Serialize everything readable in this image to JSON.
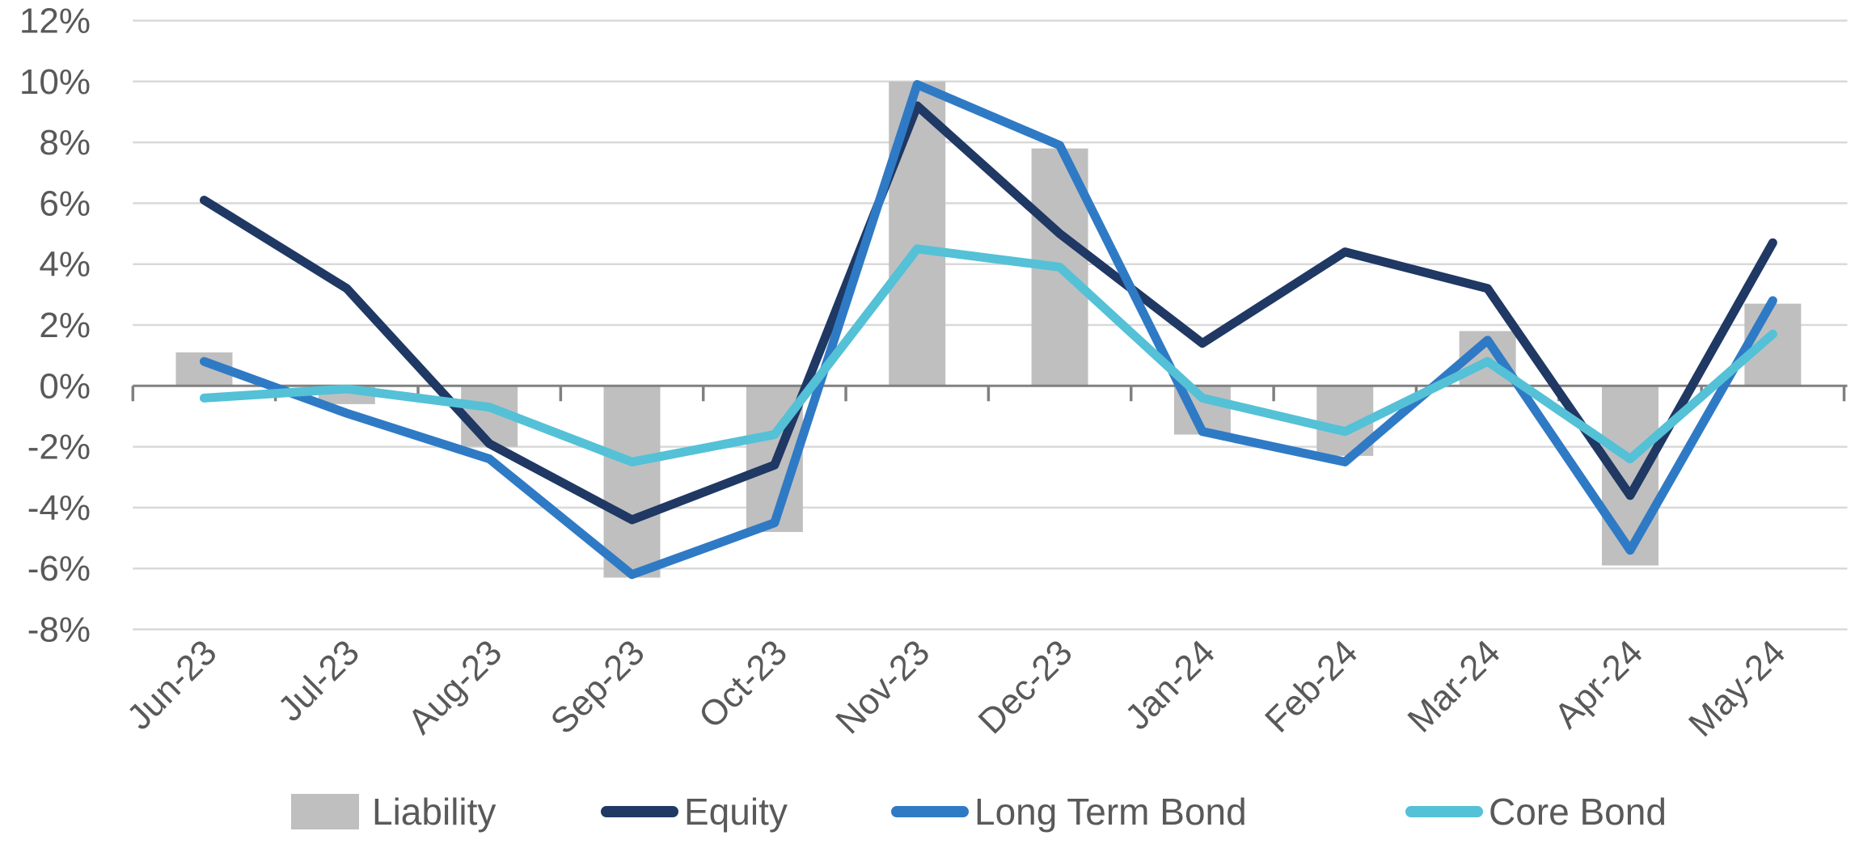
{
  "chart_data": {
    "type": "combo",
    "title": "",
    "xlabel": "",
    "ylabel": "",
    "categories": [
      "Jun-23",
      "Jul-23",
      "Aug-23",
      "Sep-23",
      "Oct-23",
      "Nov-23",
      "Dec-23",
      "Jan-24",
      "Feb-24",
      "Mar-24",
      "Apr-24",
      "May-24"
    ],
    "series": [
      {
        "name": "Liability",
        "type": "bar",
        "color": "#BFBFBF",
        "values": [
          1.1,
          -0.6,
          -2.0,
          -6.3,
          -4.8,
          10.0,
          7.8,
          -1.6,
          -2.3,
          1.8,
          -5.9,
          2.7
        ]
      },
      {
        "name": "Equity",
        "type": "line",
        "color": "#1F3864",
        "values": [
          6.1,
          3.2,
          -1.9,
          -4.4,
          -2.6,
          9.2,
          5.0,
          1.4,
          4.4,
          3.2,
          -3.6,
          4.7
        ]
      },
      {
        "name": "Long Term Bond",
        "type": "line",
        "color": "#2F7AC5",
        "values": [
          0.8,
          -0.9,
          -2.4,
          -6.2,
          -4.5,
          9.9,
          7.9,
          -1.5,
          -2.5,
          1.5,
          -5.4,
          2.8
        ]
      },
      {
        "name": "Core Bond",
        "type": "line",
        "color": "#54C1D7",
        "values": [
          -0.4,
          -0.1,
          -0.7,
          -2.5,
          -1.6,
          4.5,
          3.9,
          -0.4,
          -1.5,
          0.8,
          -2.4,
          1.7
        ]
      }
    ],
    "ylim": [
      -8,
      12
    ],
    "ytick_step": 2,
    "y_tick_labels": [
      "12%",
      "10%",
      "8%",
      "6%",
      "4%",
      "2%",
      "0%",
      "-2%",
      "-4%",
      "-6%",
      "-8%"
    ],
    "grid": true,
    "legend_position": "bottom"
  },
  "legend": {
    "items": [
      {
        "label": "Liability"
      },
      {
        "label": "Equity"
      },
      {
        "label": "Long Term Bond"
      },
      {
        "label": "Core Bond"
      }
    ]
  },
  "colors": {
    "gridline": "#D9D9D9",
    "axis_line": "#808080",
    "tick_mark": "#808080",
    "text": "#595959"
  }
}
